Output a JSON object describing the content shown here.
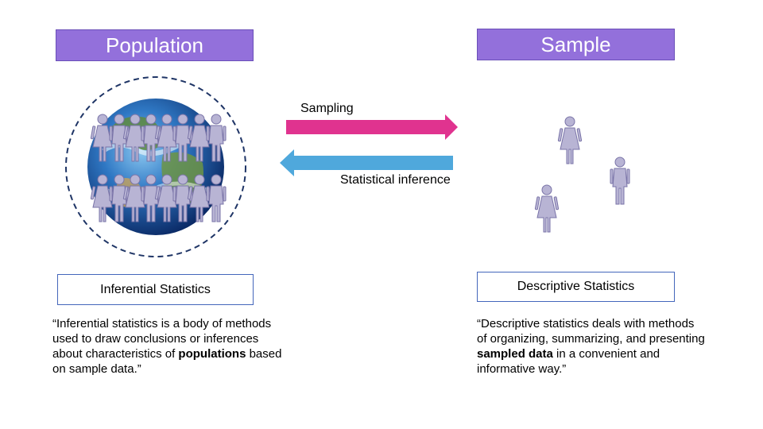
{
  "population": {
    "title": "Population"
  },
  "sample": {
    "title": "Sample"
  },
  "arrows": {
    "sampling": "Sampling",
    "inference": "Statistical inference"
  },
  "inferential": {
    "label": "Inferential Statistics",
    "quote_part1": "“Inferential statistics is a body of methods used to draw conclusions or inferences about characteristics of ",
    "quote_bold": "populations",
    "quote_part2": " based on sample data.”"
  },
  "descriptive": {
    "label": "Descriptive Statistics",
    "quote_part1": "“Descriptive statistics deals with methods of organizing, summarizing, and presenting ",
    "quote_bold": "sampled data",
    "quote_part2": " in a convenient and informative way.”"
  },
  "colors": {
    "title_bg": "#9370db",
    "sampling_arrow": "#e0338f",
    "inference_arrow": "#4fa8dc",
    "person": "#b8b4d4",
    "person_outline": "#7a74a8"
  },
  "icons": {
    "globe": "earth-globe-icon",
    "person": "person-icon"
  }
}
